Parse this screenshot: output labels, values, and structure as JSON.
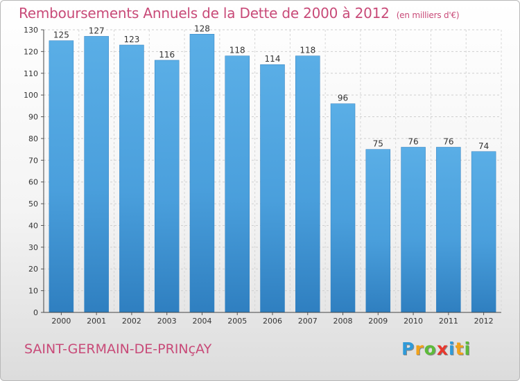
{
  "chart_data": {
    "type": "bar",
    "title": "Remboursements Annuels de la Dette de 2000 à 2012",
    "unit": "(en milliers d'€)",
    "categories": [
      "2000",
      "2001",
      "2002",
      "2003",
      "2004",
      "2005",
      "2006",
      "2007",
      "2008",
      "2009",
      "2010",
      "2011",
      "2012"
    ],
    "values": [
      125,
      127,
      123,
      116,
      128,
      118,
      114,
      118,
      96,
      75,
      76,
      76,
      74
    ],
    "ylim": [
      0,
      130
    ],
    "yticks": [
      0,
      10,
      20,
      30,
      40,
      50,
      60,
      70,
      80,
      90,
      100,
      110,
      120,
      130
    ],
    "grid": true,
    "bar_color": "#4a9fdc"
  },
  "commune": "SAINT-GERMAIN-DE-PRINçAY",
  "logo": {
    "letters": [
      "P",
      "r",
      "o",
      "x",
      "i",
      "t",
      "i"
    ],
    "colors": [
      "#2f9ad8",
      "#f2a21a",
      "#5dbb3a",
      "#e8382e",
      "#2f9ad8",
      "#f2a21a",
      "#5dbb3a"
    ]
  }
}
